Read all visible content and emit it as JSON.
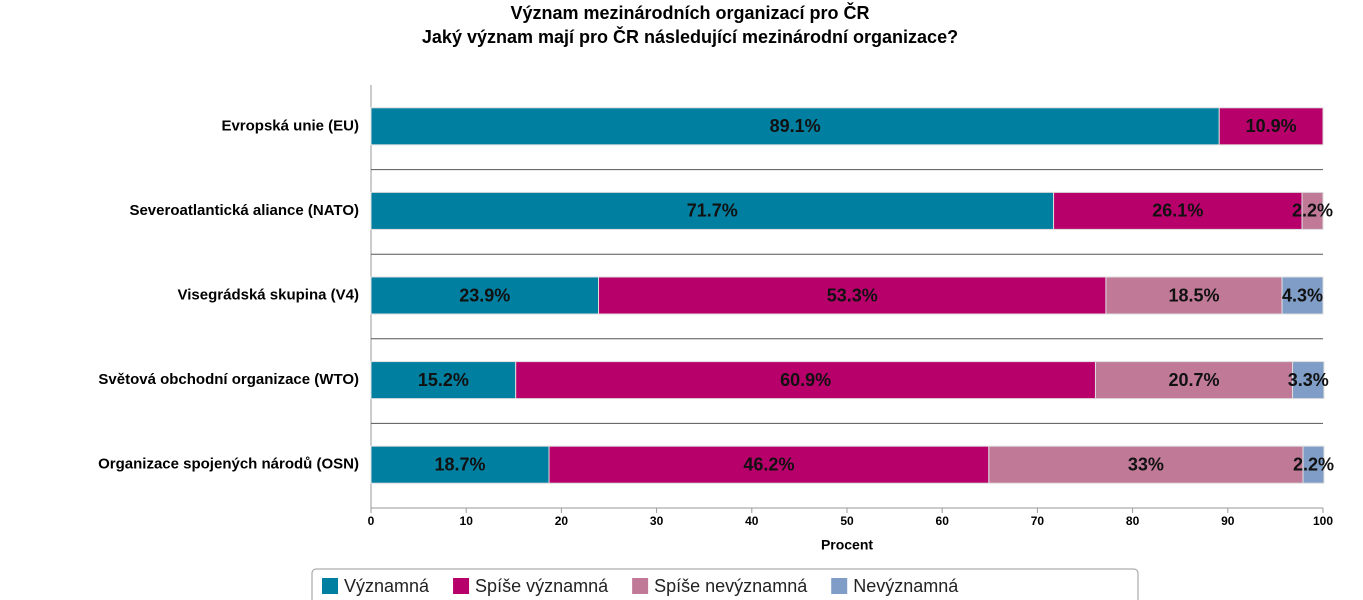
{
  "chart_data": {
    "type": "stacked-bar-horizontal",
    "title": "Význam mezinárodních organizací pro ČR",
    "subtitle": "Jaký význam mají pro ČR následující mezinárodní organizace?",
    "x_label": "Procent",
    "categories": [
      "Evropská unie (EU)",
      "Severoatlantická aliance (NATO)",
      "Visegrádská skupina (V4)",
      "Světová obchodní organizace (WTO)",
      "Organizace spojených národů (OSN)"
    ],
    "series": [
      {
        "name": "Významná",
        "color": "#007fa0",
        "values": [
          89.1,
          71.7,
          23.9,
          15.2,
          18.7
        ],
        "value_labels": [
          "89.1%",
          "71.7%",
          "23.9%",
          "15.2%",
          "18.7%"
        ]
      },
      {
        "name": "Spíše významná",
        "color": "#b8006b",
        "values": [
          10.9,
          26.1,
          53.3,
          60.9,
          46.2
        ],
        "value_labels": [
          "10.9%",
          "26.1%",
          "53.3%",
          "60.9%",
          "46.2%"
        ]
      },
      {
        "name": "Spíše nevýznamná",
        "color": "#c07a98",
        "values": [
          null,
          2.2,
          18.5,
          20.7,
          33
        ],
        "value_labels": [
          null,
          "2.2%",
          "18.5%",
          "20.7%",
          "33%"
        ]
      },
      {
        "name": "Nevýznamná",
        "color": "#7f9dc6",
        "values": [
          null,
          null,
          4.3,
          3.3,
          2.2
        ],
        "value_labels": [
          null,
          null,
          "4.3%",
          "3.3%",
          "2.2%"
        ]
      }
    ],
    "xlim": [
      0,
      100
    ],
    "xticks": [
      0,
      10,
      20,
      30,
      40,
      50,
      60,
      70,
      80,
      90,
      100
    ],
    "legend": "bottom"
  }
}
